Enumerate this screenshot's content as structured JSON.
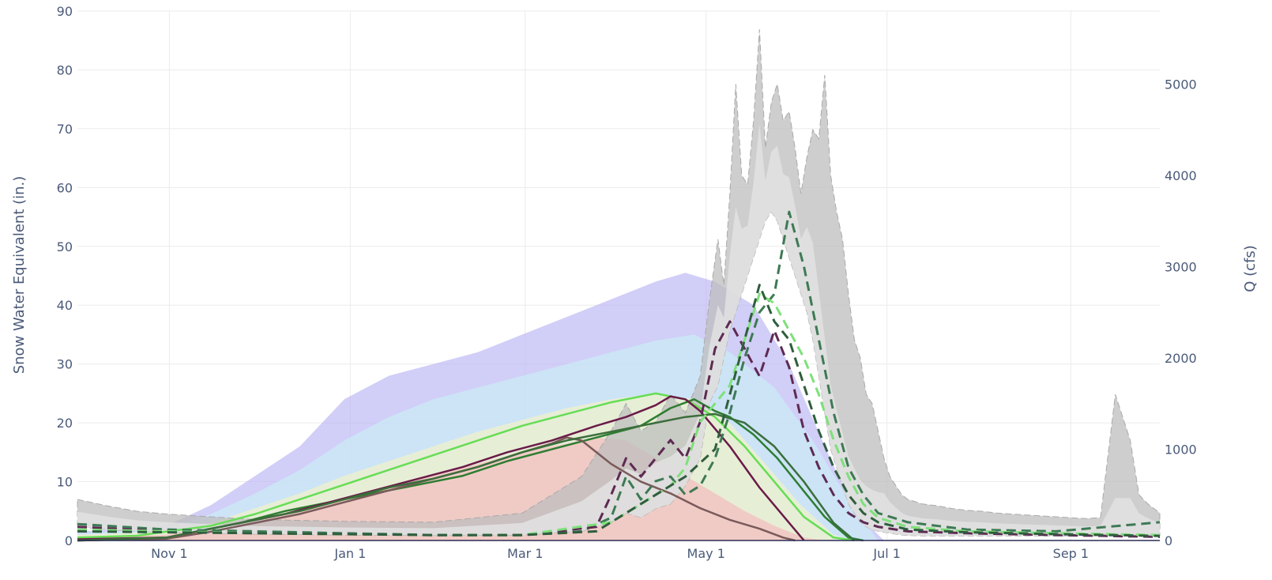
{
  "chart_data": {
    "type": "area",
    "title": "",
    "xlabel": "",
    "ylabel": "Snow Water Equivalent (in.)",
    "y2label": "Q (cfs)",
    "x_ticks": [
      "Nov 1",
      "Jan 1",
      "Mar 1",
      "May 1",
      "Jul 1",
      "Sep 1"
    ],
    "x_tick_days": [
      31,
      92,
      151,
      212,
      273,
      335
    ],
    "xlim": [
      0,
      365
    ],
    "ylim": [
      0,
      90
    ],
    "y_ticks": [
      0,
      10,
      20,
      30,
      40,
      50,
      60,
      70,
      80,
      90
    ],
    "y2lim": [
      0,
      5800
    ],
    "y2_ticks": [
      0,
      1000,
      2000,
      3000,
      4000,
      5000
    ],
    "grid": true,
    "legend": "none",
    "colors": {
      "discharge_range": "#bdbdbd",
      "discharge_inner": "#e3e3e3",
      "swe_max": "#b9b4f2",
      "swe_upper": "#c9f0f6",
      "swe_mid": "#f6f2c4",
      "swe_low": "#f4b8bc",
      "swe_median": "#66dd55",
      "year_dark_green": "#2e7d32",
      "year_purple": "#6a1b48",
      "year_brown": "#7a5a5a",
      "q_dashed_green": "#3d7a55",
      "q_dashed_purple": "#5d2a52",
      "q_dashed_light": "#7ee07a"
    },
    "series": [
      {
        "kind": "swe-band",
        "axis": "y",
        "x": [
          0,
          30,
          45,
          60,
          75,
          90,
          105,
          120,
          135,
          150,
          165,
          180,
          195,
          205,
          215,
          228,
          240,
          252,
          262,
          272
        ],
        "upper": [
          1.5,
          2.5,
          6,
          11,
          16,
          24,
          28,
          30,
          32,
          35,
          38,
          41,
          44,
          45.5,
          44,
          40,
          30,
          16,
          5,
          0
        ],
        "lower": [
          0,
          0,
          0,
          0,
          0,
          0,
          0,
          0,
          0,
          0,
          0,
          0,
          0,
          0,
          0,
          0,
          0,
          0,
          0,
          0
        ]
      },
      {
        "kind": "swe-band",
        "axis": "y",
        "x": [
          0,
          30,
          45,
          60,
          75,
          90,
          105,
          120,
          135,
          150,
          165,
          180,
          195,
          208,
          220,
          235,
          248,
          260,
          270
        ],
        "upper": [
          1.2,
          2,
          4.5,
          8,
          12,
          17,
          21,
          24,
          26,
          28,
          30,
          32,
          34,
          35,
          32,
          26,
          17,
          7,
          0
        ],
        "lower": [
          0,
          0,
          0,
          0,
          0,
          0,
          0,
          0,
          0,
          0,
          0,
          0,
          0,
          0,
          0,
          0,
          0,
          0,
          0
        ]
      },
      {
        "kind": "swe-band",
        "axis": "y",
        "x": [
          0,
          30,
          45,
          60,
          75,
          90,
          105,
          120,
          135,
          150,
          165,
          180,
          195,
          208,
          220,
          232,
          244,
          255,
          262
        ],
        "upper": [
          1,
          1.5,
          3,
          5.5,
          8,
          11,
          13.5,
          16,
          18.5,
          20.5,
          22.5,
          24,
          25,
          24,
          20,
          13,
          6,
          1,
          0
        ],
        "lower": [
          0,
          0,
          0,
          0,
          0,
          0,
          0,
          0,
          0,
          0,
          0,
          0,
          0,
          0,
          0,
          0,
          0,
          0,
          0
        ]
      },
      {
        "kind": "swe-band",
        "axis": "y",
        "x": [
          0,
          30,
          45,
          60,
          75,
          90,
          105,
          120,
          135,
          150,
          165,
          175,
          185,
          195,
          205,
          215,
          225,
          235,
          245,
          252
        ],
        "upper": [
          0.5,
          1,
          2,
          3.5,
          5,
          7,
          9,
          11,
          13,
          15,
          16.5,
          17.5,
          17,
          14,
          11,
          8,
          5,
          2.5,
          0.5,
          0
        ],
        "lower": [
          0,
          0,
          0,
          0,
          0,
          0,
          0,
          0,
          0,
          0,
          0,
          0,
          0,
          0,
          0,
          0,
          0,
          0,
          0,
          0
        ]
      },
      {
        "kind": "discharge-band",
        "axis": "y2",
        "x": [
          0,
          10,
          20,
          30,
          45,
          60,
          90,
          120,
          150,
          170,
          180,
          185,
          190,
          195,
          200,
          205,
          210,
          213,
          216,
          218,
          220,
          222,
          224,
          226,
          228,
          230,
          232,
          234,
          236,
          238,
          240,
          242,
          244,
          246,
          248,
          250,
          252,
          254,
          256,
          258,
          260,
          262,
          264,
          266,
          268,
          270,
          272,
          274,
          276,
          278,
          280,
          285,
          290,
          295,
          300,
          305,
          310,
          320,
          330,
          340,
          345,
          350,
          355,
          358,
          361,
          365
        ],
        "upper": [
          450,
          380,
          320,
          290,
          260,
          230,
          210,
          200,
          300,
          700,
          1200,
          1500,
          1200,
          1300,
          1600,
          1400,
          1800,
          2600,
          3300,
          2800,
          3800,
          5000,
          4000,
          3900,
          4600,
          5600,
          4300,
          4800,
          5000,
          4600,
          4700,
          4300,
          3800,
          4200,
          4500,
          4400,
          5100,
          4000,
          3600,
          3300,
          2700,
          2200,
          2000,
          1600,
          1500,
          1200,
          900,
          700,
          600,
          500,
          450,
          400,
          380,
          350,
          330,
          320,
          300,
          280,
          260,
          240,
          250,
          1600,
          1100,
          500,
          400,
          300
        ],
        "lower": [
          150,
          120,
          100,
          90,
          80,
          70,
          60,
          55,
          60,
          100,
          200,
          300,
          250,
          350,
          400,
          600,
          900,
          1500,
          1700,
          2000,
          2300,
          2500,
          2700,
          2900,
          3100,
          3300,
          3500,
          3600,
          3500,
          3300,
          3100,
          2900,
          2700,
          2500,
          2200,
          1800,
          1400,
          1000,
          800,
          600,
          400,
          300,
          200,
          150,
          120,
          100,
          90,
          80,
          70,
          60,
          55,
          50,
          50,
          50,
          50,
          50,
          50,
          50,
          50,
          50,
          50,
          50,
          50,
          50,
          50,
          50
        ]
      },
      {
        "kind": "swe-median",
        "axis": "y",
        "x": [
          0,
          20,
          30,
          45,
          60,
          75,
          90,
          105,
          120,
          135,
          150,
          165,
          180,
          195,
          205,
          215,
          225,
          235,
          245,
          255,
          262
        ],
        "values": [
          0.5,
          0.8,
          1.5,
          2.5,
          4.5,
          7,
          9.5,
          12,
          14.5,
          17,
          19.5,
          21.5,
          23.5,
          25,
          24,
          21,
          16,
          10,
          4,
          0.5,
          0
        ],
        "color": "#66dd55",
        "dash": false
      },
      {
        "kind": "swe-year",
        "axis": "y",
        "x": [
          0,
          30,
          40,
          55,
          70,
          85,
          100,
          115,
          130,
          145,
          160,
          175,
          190,
          200,
          208,
          215,
          220,
          228,
          236,
          244,
          252,
          260,
          265
        ],
        "values": [
          0,
          0.3,
          1.5,
          3,
          5,
          6.5,
          8,
          9.5,
          11,
          13.5,
          15.5,
          17.5,
          19.5,
          22.5,
          24,
          22,
          21,
          18,
          14,
          9,
          4,
          0.5,
          0
        ],
        "color": "#2e7d32",
        "dash": false
      },
      {
        "kind": "swe-year",
        "axis": "y",
        "x": [
          0,
          30,
          40,
          55,
          70,
          85,
          100,
          115,
          130,
          145,
          160,
          175,
          185,
          195,
          200,
          205,
          210,
          220,
          230,
          240,
          245
        ],
        "values": [
          0.2,
          0.5,
          1.5,
          3,
          4.5,
          6.5,
          8.5,
          10.5,
          12.5,
          15,
          17,
          19.5,
          21,
          23,
          24.5,
          24,
          22,
          16,
          9,
          3,
          0
        ],
        "color": "#6a1b48",
        "dash": false
      },
      {
        "kind": "swe-year",
        "axis": "y",
        "x": [
          0,
          30,
          45,
          60,
          75,
          90,
          105,
          120,
          135,
          150,
          160,
          165,
          170,
          180,
          190,
          200,
          210,
          220,
          230,
          238,
          242
        ],
        "values": [
          0,
          0.3,
          1.5,
          3,
          4.5,
          6.5,
          8.5,
          10.5,
          12.5,
          15,
          16.5,
          17.5,
          17,
          13,
          10,
          8,
          5.5,
          3.5,
          2,
          0.5,
          0
        ],
        "color": "#7a5a5a",
        "dash": false
      },
      {
        "kind": "swe-year",
        "axis": "y",
        "x": [
          0,
          30,
          45,
          60,
          75,
          90,
          105,
          120,
          135,
          150,
          165,
          180,
          195,
          205,
          215,
          225,
          235,
          245,
          255,
          262
        ],
        "values": [
          0,
          0.5,
          2,
          3.5,
          5,
          7,
          9,
          10.5,
          12.5,
          15,
          17,
          18.5,
          20,
          21,
          21.5,
          20,
          16,
          10,
          3,
          0
        ],
        "color": "#3b6e3b",
        "dash": false
      },
      {
        "kind": "q-year",
        "axis": "y2",
        "x": [
          0,
          30,
          60,
          90,
          120,
          150,
          170,
          180,
          185,
          190,
          195,
          200,
          205,
          210,
          215,
          220,
          225,
          230,
          235,
          240,
          245,
          250,
          255,
          260,
          265,
          270,
          280,
          300,
          330,
          365
        ],
        "values": [
          180,
          120,
          100,
          80,
          60,
          60,
          100,
          250,
          700,
          450,
          650,
          700,
          500,
          600,
          900,
          1400,
          2000,
          2500,
          2700,
          3600,
          3000,
          2200,
          1400,
          800,
          500,
          300,
          200,
          120,
          100,
          200
        ],
        "color": "#3d7a55",
        "dash": true
      },
      {
        "kind": "q-year",
        "axis": "y2",
        "x": [
          0,
          30,
          60,
          90,
          120,
          150,
          175,
          180,
          185,
          190,
          195,
          200,
          205,
          210,
          215,
          220,
          225,
          230,
          235,
          240,
          245,
          250,
          255,
          260,
          265,
          270,
          280,
          300,
          330,
          365
        ],
        "values": [
          150,
          100,
          80,
          70,
          60,
          60,
          150,
          500,
          900,
          700,
          900,
          1100,
          900,
          1300,
          2100,
          2400,
          2100,
          1800,
          2300,
          1900,
          1200,
          800,
          500,
          300,
          200,
          150,
          100,
          80,
          60,
          40
        ],
        "color": "#5d2a52",
        "dash": true
      },
      {
        "kind": "q-year",
        "axis": "y2",
        "x": [
          0,
          30,
          60,
          90,
          120,
          150,
          180,
          190,
          200,
          205,
          210,
          215,
          220,
          225,
          230,
          235,
          240,
          245,
          250,
          255,
          260,
          265,
          270,
          280,
          300,
          330,
          365
        ],
        "values": [
          120,
          100,
          80,
          70,
          60,
          60,
          200,
          400,
          600,
          800,
          1300,
          1500,
          1700,
          2200,
          2700,
          2600,
          2300,
          2000,
          1600,
          1100,
          700,
          400,
          250,
          150,
          100,
          80,
          60
        ],
        "color": "#7ee07a",
        "dash": true
      },
      {
        "kind": "q-year",
        "axis": "y2",
        "x": [
          0,
          30,
          60,
          90,
          120,
          150,
          175,
          185,
          195,
          205,
          215,
          220,
          225,
          230,
          235,
          240,
          245,
          250,
          255,
          260,
          265,
          270,
          280,
          300,
          330,
          365
        ],
        "values": [
          100,
          90,
          80,
          70,
          60,
          60,
          100,
          300,
          500,
          700,
          1000,
          1600,
          2200,
          2800,
          2400,
          2200,
          1700,
          1200,
          800,
          500,
          300,
          200,
          120,
          90,
          70,
          50
        ],
        "color": "#2f5e3e",
        "dash": true
      }
    ]
  }
}
